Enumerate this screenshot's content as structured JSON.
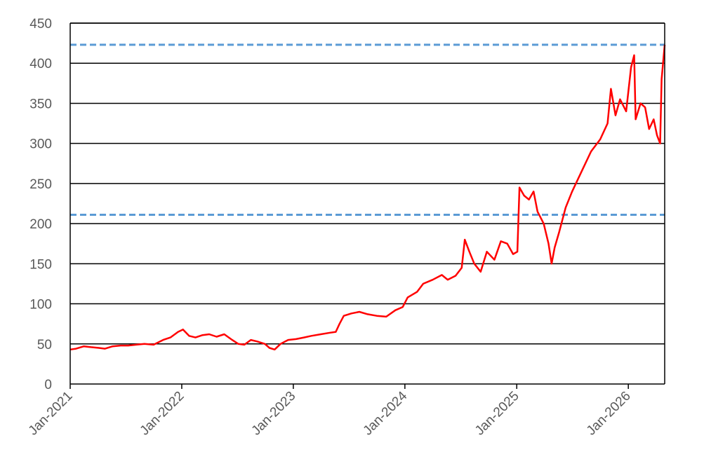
{
  "chart_data": {
    "type": "line",
    "x_axis": {
      "type": "date",
      "range": [
        "2021-01-01",
        "2026-04-30"
      ],
      "tick_labels": [
        "Jan-2021",
        "Jan-2022",
        "Jan-2023",
        "Jan-2024",
        "Jan-2025",
        "Jan-2026"
      ],
      "tick_dates": [
        "2021-01-01",
        "2022-01-01",
        "2023-01-01",
        "2024-01-01",
        "2025-01-01",
        "2026-01-01"
      ],
      "label_rotation_deg": -45
    },
    "y_axis": {
      "range": [
        0,
        450
      ],
      "ticks": [
        0,
        50,
        100,
        150,
        200,
        250,
        300,
        350,
        400,
        450
      ],
      "tick_labels": [
        "0",
        "50",
        "100",
        "150",
        "200",
        "250",
        "300",
        "350",
        "400",
        "450"
      ]
    },
    "grid": {
      "horizontal": true,
      "vertical": false
    },
    "reference_lines": [
      {
        "y": 423,
        "style": "dashed",
        "color": "#5B9BD5"
      },
      {
        "y": 211,
        "style": "dashed",
        "color": "#5B9BD5"
      }
    ],
    "series": [
      {
        "color": "#FF0000",
        "points": [
          [
            "2021-01-01",
            43
          ],
          [
            "2021-01-20",
            44
          ],
          [
            "2021-02-15",
            47
          ],
          [
            "2021-03-10",
            46
          ],
          [
            "2021-04-05",
            45
          ],
          [
            "2021-04-25",
            44
          ],
          [
            "2021-05-20",
            47
          ],
          [
            "2021-06-15",
            48
          ],
          [
            "2021-07-10",
            48
          ],
          [
            "2021-08-05",
            49
          ],
          [
            "2021-09-01",
            50
          ],
          [
            "2021-10-01",
            49
          ],
          [
            "2021-11-01",
            55
          ],
          [
            "2021-11-25",
            58
          ],
          [
            "2021-12-20",
            65
          ],
          [
            "2022-01-05",
            68
          ],
          [
            "2022-01-25",
            60
          ],
          [
            "2022-02-15",
            58
          ],
          [
            "2022-03-10",
            61
          ],
          [
            "2022-04-01",
            62
          ],
          [
            "2022-04-25",
            59
          ],
          [
            "2022-05-20",
            62
          ],
          [
            "2022-06-15",
            55
          ],
          [
            "2022-07-05",
            50
          ],
          [
            "2022-07-25",
            49
          ],
          [
            "2022-08-15",
            55
          ],
          [
            "2022-09-05",
            53
          ],
          [
            "2022-09-30",
            50
          ],
          [
            "2022-10-15",
            45
          ],
          [
            "2022-11-01",
            43
          ],
          [
            "2022-11-20",
            50
          ],
          [
            "2022-12-15",
            55
          ],
          [
            "2023-01-10",
            56
          ],
          [
            "2023-02-05",
            58
          ],
          [
            "2023-03-01",
            60
          ],
          [
            "2023-04-01",
            62
          ],
          [
            "2023-05-01",
            64
          ],
          [
            "2023-05-20",
            65
          ],
          [
            "2023-06-01",
            75
          ],
          [
            "2023-06-15",
            85
          ],
          [
            "2023-07-10",
            88
          ],
          [
            "2023-08-05",
            90
          ],
          [
            "2023-09-01",
            87
          ],
          [
            "2023-10-01",
            85
          ],
          [
            "2023-11-01",
            84
          ],
          [
            "2023-12-01",
            92
          ],
          [
            "2023-12-25",
            96
          ],
          [
            "2024-01-10",
            108
          ],
          [
            "2024-02-10",
            115
          ],
          [
            "2024-03-01",
            125
          ],
          [
            "2024-04-01",
            130
          ],
          [
            "2024-05-01",
            136
          ],
          [
            "2024-05-20",
            130
          ],
          [
            "2024-06-15",
            135
          ],
          [
            "2024-07-05",
            145
          ],
          [
            "2024-07-15",
            180
          ],
          [
            "2024-07-30",
            165
          ],
          [
            "2024-08-15",
            150
          ],
          [
            "2024-09-05",
            140
          ],
          [
            "2024-09-25",
            165
          ],
          [
            "2024-10-20",
            155
          ],
          [
            "2024-11-10",
            178
          ],
          [
            "2024-12-01",
            175
          ],
          [
            "2024-12-20",
            162
          ],
          [
            "2025-01-03",
            165
          ],
          [
            "2025-01-10",
            245
          ],
          [
            "2025-01-25",
            235
          ],
          [
            "2025-02-10",
            230
          ],
          [
            "2025-02-25",
            240
          ],
          [
            "2025-03-10",
            215
          ],
          [
            "2025-03-30",
            200
          ],
          [
            "2025-04-15",
            175
          ],
          [
            "2025-04-25",
            150
          ],
          [
            "2025-05-05",
            170
          ],
          [
            "2025-05-20",
            190
          ],
          [
            "2025-06-10",
            220
          ],
          [
            "2025-07-01",
            240
          ],
          [
            "2025-08-01",
            265
          ],
          [
            "2025-09-01",
            290
          ],
          [
            "2025-10-01",
            305
          ],
          [
            "2025-10-25",
            325
          ],
          [
            "2025-11-05",
            368
          ],
          [
            "2025-11-20",
            335
          ],
          [
            "2025-12-05",
            355
          ],
          [
            "2025-12-25",
            340
          ],
          [
            "2026-01-10",
            395
          ],
          [
            "2026-01-20",
            410
          ],
          [
            "2026-01-25",
            330
          ],
          [
            "2026-02-10",
            350
          ],
          [
            "2026-02-25",
            345
          ],
          [
            "2026-03-10",
            318
          ],
          [
            "2026-03-25",
            330
          ],
          [
            "2026-04-05",
            310
          ],
          [
            "2026-04-15",
            300
          ],
          [
            "2026-04-20",
            380
          ],
          [
            "2026-04-30",
            423
          ]
        ]
      }
    ]
  }
}
